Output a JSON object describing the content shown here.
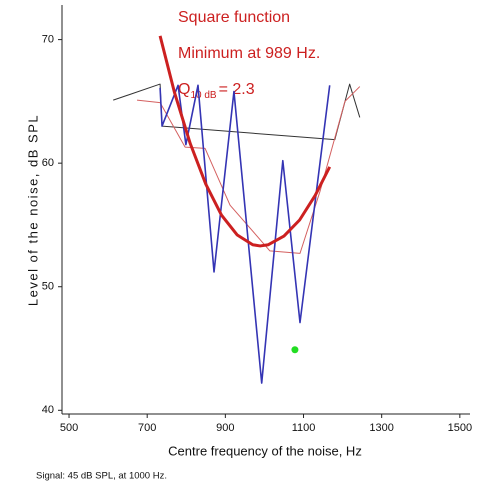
{
  "chart_data": {
    "type": "line",
    "annotations": [
      "Square function",
      "Minimum at 989 Hz."
    ],
    "q_label": {
      "symbol": "Q",
      "subscript": "10 dB",
      "rest": "= 2.3"
    },
    "x_label": "Centre frequency of the noise, Hz",
    "y_label": "Level of the noise, dB SPL",
    "footer": "Signal: 45 dB SPL,  at 1000 Hz.",
    "xlim": [
      482,
      1526
    ],
    "ylim": [
      39.7,
      72.8
    ],
    "xticks": [
      500,
      700,
      900,
      1100,
      1300,
      1500
    ],
    "yticks": [
      40,
      50,
      60,
      70
    ],
    "series": [
      {
        "color": "#333333",
        "width": 1,
        "x": [
          613,
          733,
          738,
          1180,
          1218,
          1244
        ],
        "values": [
          65.1,
          66.4,
          63.0,
          61.9,
          66.4,
          63.7
        ]
      },
      {
        "color": "#d46060",
        "width": 1,
        "x": [
          674,
          733,
          797,
          848,
          912,
          1014,
          1091,
          1142,
          1206,
          1244
        ],
        "values": [
          65.1,
          64.9,
          61.3,
          61.2,
          56.6,
          52.9,
          52.7,
          57.7,
          65.0,
          66.2
        ]
      },
      {
        "color": "#3434b4",
        "width": 1.6,
        "x": [
          733,
          738,
          779,
          799,
          830,
          871,
          922,
          993,
          1047,
          1091,
          1167
        ],
        "values": [
          66.1,
          63.0,
          66.3,
          61.5,
          66.3,
          51.2,
          65.8,
          42.2,
          60.2,
          47.1,
          66.3
        ]
      },
      {
        "color": "#cc2020",
        "width": 3,
        "x": [
          733,
          770,
          810,
          850,
          890,
          930,
          970,
          989,
          1010,
          1050,
          1090,
          1130,
          1167
        ],
        "values": [
          70.3,
          65.7,
          61.6,
          58.3,
          55.8,
          54.2,
          53.4,
          53.3,
          53.4,
          54.1,
          55.4,
          57.4,
          59.7
        ]
      }
    ],
    "point": {
      "color": "#22dd22",
      "x": 1078,
      "value": 44.9
    }
  }
}
